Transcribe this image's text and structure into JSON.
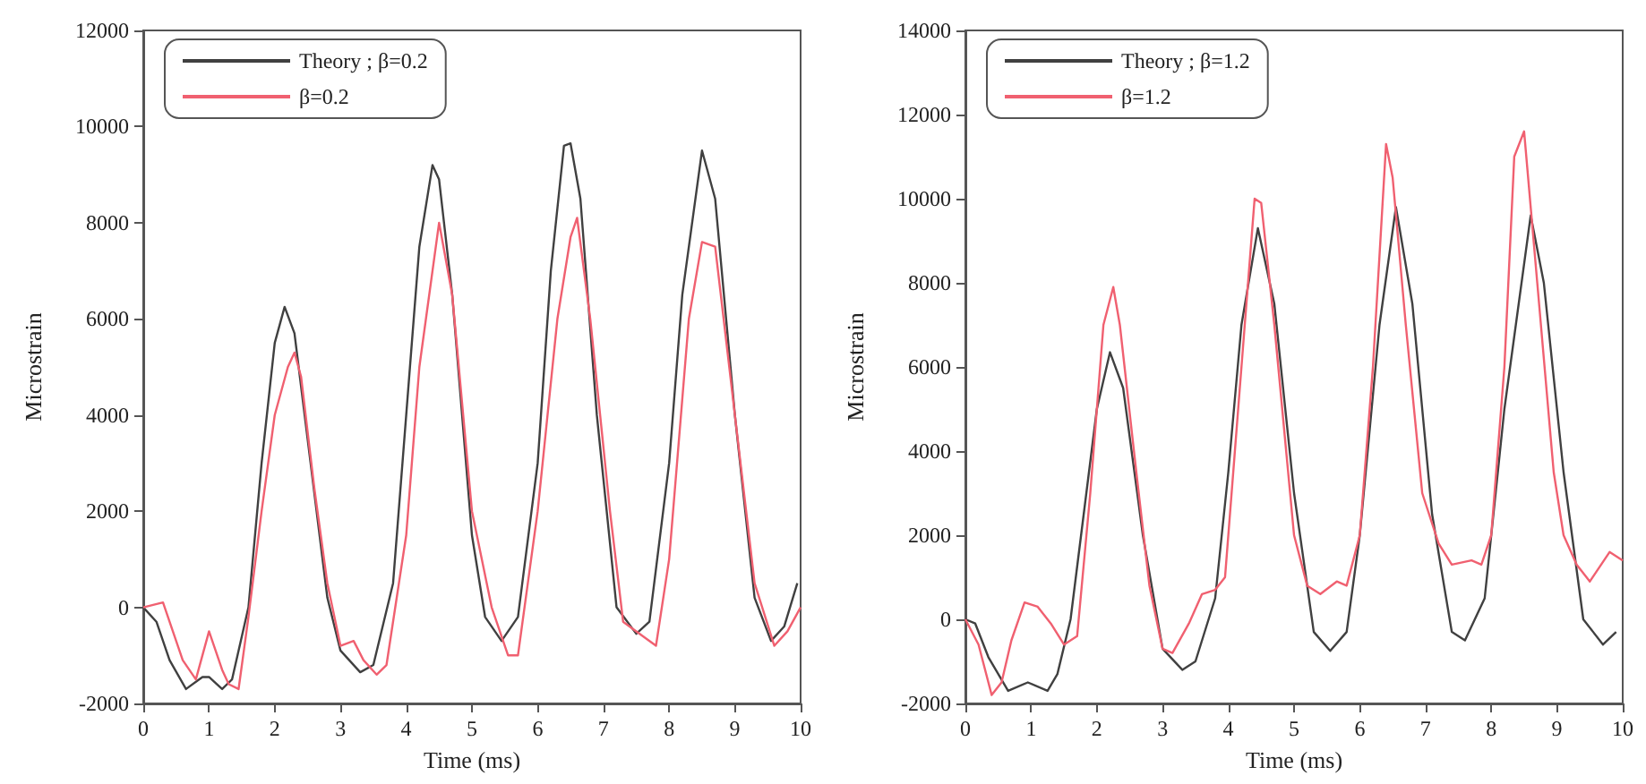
{
  "chart_data": [
    {
      "type": "line",
      "xlabel": "Time (ms)",
      "ylabel": "Microstrain",
      "xlim": [
        0,
        10
      ],
      "xticks": [
        0,
        1,
        2,
        3,
        4,
        5,
        6,
        7,
        8,
        9,
        10
      ],
      "ylim": [
        -2000,
        12000
      ],
      "yticks": [
        -2000,
        0,
        2000,
        4000,
        6000,
        8000,
        10000,
        12000
      ],
      "grid": false,
      "legend": "top left",
      "marker": "none",
      "line_style": "solid",
      "series": [
        {
          "name": "Theory ; β=0.2",
          "color": "#404040",
          "x": [
            0,
            0.2,
            0.4,
            0.65,
            0.9,
            1.0,
            1.2,
            1.35,
            1.6,
            1.8,
            2.0,
            2.15,
            2.3,
            2.5,
            2.8,
            3.0,
            3.3,
            3.5,
            3.8,
            4.0,
            4.2,
            4.4,
            4.5,
            4.7,
            5.0,
            5.2,
            5.45,
            5.7,
            6.0,
            6.2,
            6.4,
            6.5,
            6.65,
            6.9,
            7.2,
            7.5,
            7.7,
            8.0,
            8.2,
            8.5,
            8.7,
            9.0,
            9.3,
            9.55,
            9.75,
            9.95
          ],
          "values": [
            0,
            -300,
            -1100,
            -1700,
            -1450,
            -1450,
            -1700,
            -1500,
            0,
            3000,
            5500,
            6250,
            5700,
            3500,
            200,
            -900,
            -1350,
            -1200,
            500,
            4000,
            7500,
            9200,
            8900,
            6500,
            1500,
            -200,
            -700,
            -200,
            3000,
            7000,
            9600,
            9650,
            8500,
            4000,
            0,
            -550,
            -300,
            3000,
            6500,
            9500,
            8500,
            4000,
            200,
            -700,
            -400,
            500
          ]
        },
        {
          "name": "β=0.2",
          "color": "#f06070",
          "x": [
            0,
            0.3,
            0.45,
            0.6,
            0.8,
            1.0,
            1.2,
            1.3,
            1.45,
            1.6,
            1.8,
            2.0,
            2.2,
            2.3,
            2.4,
            2.6,
            2.8,
            3.0,
            3.2,
            3.35,
            3.55,
            3.7,
            4.0,
            4.2,
            4.5,
            4.7,
            5.0,
            5.3,
            5.55,
            5.7,
            6.0,
            6.3,
            6.5,
            6.6,
            6.8,
            7.1,
            7.3,
            7.5,
            7.8,
            8.0,
            8.3,
            8.5,
            8.7,
            9.0,
            9.3,
            9.6,
            9.8,
            10
          ],
          "values": [
            0,
            100,
            -500,
            -1100,
            -1500,
            -500,
            -1300,
            -1600,
            -1700,
            -200,
            2000,
            4000,
            5000,
            5300,
            4800,
            2500,
            500,
            -800,
            -700,
            -1100,
            -1400,
            -1200,
            1500,
            5000,
            8000,
            6500,
            2000,
            0,
            -1000,
            -1000,
            2000,
            6000,
            7700,
            8100,
            6000,
            2000,
            -300,
            -500,
            -800,
            1000,
            6000,
            7600,
            7500,
            4000,
            500,
            -800,
            -500,
            0
          ]
        }
      ]
    },
    {
      "type": "line",
      "xlabel": "Time (ms)",
      "ylabel": "Microstrain",
      "xlim": [
        0,
        10
      ],
      "xticks": [
        0,
        1,
        2,
        3,
        4,
        5,
        6,
        7,
        8,
        9,
        10
      ],
      "ylim": [
        -2000,
        14000
      ],
      "yticks": [
        -2000,
        0,
        2000,
        4000,
        6000,
        8000,
        10000,
        12000,
        14000
      ],
      "grid": false,
      "legend": "top left",
      "marker": "none",
      "line_style": "solid",
      "series": [
        {
          "name": "Theory ; β=1.2",
          "color": "#404040",
          "x": [
            0,
            0.15,
            0.35,
            0.65,
            0.95,
            1.25,
            1.4,
            1.6,
            1.8,
            2.0,
            2.2,
            2.4,
            2.7,
            3.0,
            3.3,
            3.5,
            3.8,
            4.0,
            4.2,
            4.45,
            4.7,
            5.0,
            5.3,
            5.55,
            5.8,
            6.0,
            6.3,
            6.55,
            6.8,
            7.1,
            7.4,
            7.6,
            7.9,
            8.2,
            8.6,
            8.8,
            9.1,
            9.4,
            9.7,
            9.9
          ],
          "values": [
            0,
            -100,
            -900,
            -1700,
            -1500,
            -1700,
            -1300,
            0,
            2500,
            5000,
            6350,
            5500,
            2000,
            -700,
            -1200,
            -1000,
            500,
            3500,
            7000,
            9300,
            7500,
            3000,
            -300,
            -750,
            -300,
            2000,
            7000,
            9800,
            7500,
            2500,
            -300,
            -500,
            500,
            5000,
            9600,
            8000,
            3500,
            0,
            -600,
            -300
          ]
        },
        {
          "name": "β=1.2",
          "color": "#f06070",
          "x": [
            0,
            0.2,
            0.4,
            0.55,
            0.7,
            0.9,
            1.1,
            1.3,
            1.5,
            1.7,
            1.9,
            2.1,
            2.25,
            2.35,
            2.6,
            2.8,
            3.0,
            3.15,
            3.4,
            3.6,
            3.8,
            3.95,
            4.2,
            4.4,
            4.5,
            4.7,
            5.0,
            5.2,
            5.4,
            5.65,
            5.8,
            6.0,
            6.2,
            6.4,
            6.5,
            6.7,
            6.95,
            7.2,
            7.4,
            7.7,
            7.85,
            8.0,
            8.2,
            8.35,
            8.5,
            8.7,
            8.95,
            9.1,
            9.3,
            9.5,
            9.8,
            10
          ],
          "values": [
            0,
            -600,
            -1800,
            -1500,
            -500,
            400,
            300,
            -100,
            -600,
            -400,
            3000,
            7000,
            7900,
            7000,
            3500,
            800,
            -700,
            -800,
            -100,
            600,
            700,
            1000,
            6000,
            10000,
            9900,
            7000,
            2000,
            800,
            600,
            900,
            800,
            2000,
            6000,
            11300,
            10500,
            7000,
            3000,
            1800,
            1300,
            1400,
            1300,
            2000,
            6000,
            11000,
            11600,
            8000,
            3500,
            2000,
            1300,
            900,
            1600,
            1400
          ]
        }
      ]
    }
  ]
}
